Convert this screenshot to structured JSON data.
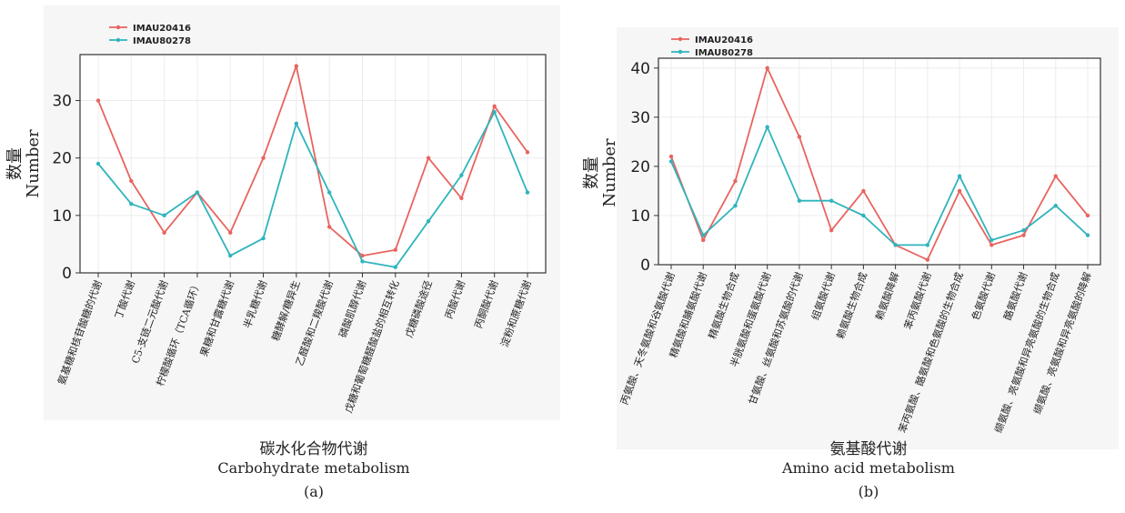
{
  "chart_data": [
    {
      "type": "line",
      "panel_label": "(a)",
      "title_zh": "碳水化合物代谢",
      "title_en": "Carbohydrate metabolism",
      "ylabel_zh": "数量",
      "ylabel_en": "Number",
      "ylim": [
        0,
        38
      ],
      "yticks": [
        0,
        10,
        20,
        30
      ],
      "legend_position": "top-left",
      "grid": true,
      "categories": [
        "氨基糖和核苷酸糖的代谢",
        "丁酸代谢",
        "C5-支链二元酸代谢",
        "柠檬酸循环（TCA循环）",
        "果糖和甘露糖代谢",
        "半乳糖代谢",
        "糖酵解/糖异生",
        "乙醛酸和二羧酸代谢",
        "磷酸肌醇代谢",
        "戊糖和葡萄糖醛酸盐的相互转化",
        "戊糖磷酸途径",
        "丙酸代谢",
        "丙酮酸代谢",
        "淀粉和蔗糖代谢"
      ],
      "series": [
        {
          "name": "IMAU20416",
          "color": "#e8645f",
          "values": [
            30,
            16,
            7,
            14,
            7,
            20,
            36,
            8,
            3,
            4,
            20,
            13,
            29,
            21
          ]
        },
        {
          "name": "IMAU80278",
          "color": "#2fb4bc",
          "values": [
            19,
            12,
            10,
            14,
            3,
            6,
            26,
            14,
            2,
            1,
            9,
            17,
            28,
            14
          ]
        }
      ]
    },
    {
      "type": "line",
      "panel_label": "(b)",
      "title_zh": "氨基酸代谢",
      "title_en": "Amino acid metabolism",
      "ylabel_zh": "数量",
      "ylabel_en": "Number",
      "ylim": [
        0,
        42
      ],
      "yticks": [
        0,
        10,
        20,
        30,
        40
      ],
      "legend_position": "top-left",
      "grid": true,
      "categories": [
        "丙氨酸、天冬氨酸和谷氨酸代谢",
        "精氨酸和脯氨酸代谢",
        "精氨酸生物合成",
        "半胱氨酸和蛋氨酸代谢",
        "甘氨酸、丝氨酸和苏氨酸的代谢",
        "组氨酸代谢",
        "赖氨酸生物合成",
        "赖氨酸降解",
        "苯丙氨酸代谢",
        "苯丙氨酸、酪氨酸和色氨酸的生物合成",
        "色氨酸代谢",
        "酪氨酸代谢",
        "缬氨酸、亮氨酸和异亮氨酸的生物合成",
        "缬氨酸、亮氨酸和异亮氨酸的降解"
      ],
      "series": [
        {
          "name": "IMAU20416",
          "color": "#e8645f",
          "values": [
            22,
            5,
            17,
            40,
            26,
            7,
            15,
            4,
            1,
            15,
            4,
            6,
            18,
            10
          ]
        },
        {
          "name": "IMAU80278",
          "color": "#2fb4bc",
          "values": [
            21,
            6,
            12,
            28,
            13,
            13,
            10,
            4,
            4,
            18,
            5,
            7,
            12,
            6
          ]
        }
      ]
    }
  ]
}
